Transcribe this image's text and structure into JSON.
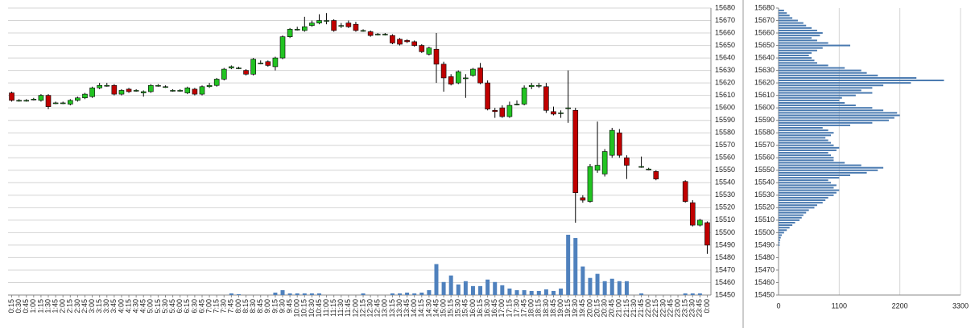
{
  "chart_data": [
    {
      "type": "candlestick",
      "categories": [
        "0:15",
        "0:30",
        "0:45",
        "1:00",
        "1:15",
        "1:30",
        "1:45",
        "2:00",
        "2:15",
        "2:30",
        "2:45",
        "3:00",
        "3:15",
        "3:30",
        "3:45",
        "4:00",
        "4:15",
        "4:30",
        "4:45",
        "5:00",
        "5:15",
        "5:30",
        "5:45",
        "6:00",
        "6:15",
        "6:30",
        "6:45",
        "7:00",
        "7:15",
        "7:30",
        "7:45",
        "8:00",
        "8:15",
        "8:30",
        "8:45",
        "9:00",
        "9:15",
        "9:30",
        "9:45",
        "10:00",
        "10:15",
        "10:30",
        "10:45",
        "11:00",
        "11:15",
        "11:30",
        "11:45",
        "12:00",
        "12:15",
        "12:30",
        "12:45",
        "13:00",
        "13:15",
        "13:30",
        "13:45",
        "14:00",
        "14:15",
        "14:30",
        "14:45",
        "15:00",
        "15:15",
        "15:30",
        "15:45",
        "16:00",
        "16:15",
        "16:30",
        "16:45",
        "17:00",
        "17:15",
        "17:30",
        "17:45",
        "18:00",
        "18:15",
        "18:30",
        "18:45",
        "19:00",
        "19:15",
        "19:30",
        "19:45",
        "20:00",
        "20:15",
        "20:30",
        "20:45",
        "21:00",
        "21:15",
        "21:30",
        "21:45",
        "22:00",
        "22:15",
        "22:30",
        "22:45",
        "23:00",
        "23:15",
        "23:30",
        "23:45",
        "0:00"
      ],
      "open": [
        15612,
        15606,
        15606,
        15607,
        15606,
        15610,
        15604,
        15604,
        15603,
        15606,
        15608,
        15609,
        15616,
        15618,
        15618,
        15611,
        15615,
        15614,
        15612,
        15613,
        15618,
        15617,
        15614,
        15614,
        15612,
        15615,
        15611,
        15617,
        15618,
        15623,
        15632,
        15632,
        15630,
        15627,
        15636,
        15637,
        15633,
        15640,
        15657,
        15663,
        15662,
        15666,
        15668,
        15670,
        15670,
        15666,
        15668,
        15667,
        15662,
        15661,
        15659,
        15659,
        15658,
        15655,
        15654,
        15653,
        15650,
        15643,
        15647,
        15635,
        15625,
        15620,
        15624,
        15626,
        15632,
        15620,
        15598,
        15600,
        15593,
        15603,
        15603,
        15617,
        15618,
        15617,
        15597,
        15596,
        15600,
        15598,
        15528,
        15525,
        15550,
        15547,
        15562,
        15580,
        15560,
        null,
        15553,
        15551,
        15549,
        null,
        null,
        null,
        15541,
        15524,
        15506,
        15508
      ],
      "high": [
        15613,
        15607,
        15607,
        15608,
        15611,
        15611,
        15605,
        15605,
        15607,
        15609,
        15612,
        15617,
        15620,
        15620,
        15619,
        15615,
        15616,
        15615,
        15614,
        15619,
        15619,
        15618,
        15615,
        15615,
        15617,
        15616,
        15618,
        15620,
        15624,
        15632,
        15634,
        15633,
        15631,
        15640,
        15638,
        15638,
        15641,
        15658,
        15664,
        15665,
        15673,
        15670,
        15675,
        15676,
        15671,
        15668,
        15670,
        15669,
        15663,
        15662,
        15660,
        15660,
        15659,
        15656,
        15655,
        15654,
        15651,
        15649,
        15660,
        15637,
        15627,
        15630,
        15627,
        15632,
        15636,
        15622,
        15600,
        15602,
        15605,
        15606,
        15618,
        15620,
        15620,
        15620,
        15601,
        15598,
        15630,
        15600,
        15530,
        15555,
        15589,
        15567,
        15584,
        15583,
        15562,
        null,
        15561,
        15552,
        15550,
        null,
        null,
        null,
        15542,
        15526,
        15511,
        15509
      ],
      "low": [
        15605,
        15605,
        15605,
        15606,
        15605,
        15599,
        15603,
        15603,
        15602,
        15605,
        15607,
        15608,
        15615,
        15617,
        15610,
        15610,
        15612,
        15613,
        15609,
        15612,
        15617,
        15616,
        15613,
        15613,
        15611,
        15610,
        15610,
        15616,
        15617,
        15622,
        15631,
        15631,
        15626,
        15626,
        15635,
        15633,
        15630,
        15639,
        15656,
        15662,
        15661,
        15665,
        15667,
        15667,
        15661,
        15664,
        15664,
        15661,
        15661,
        15657,
        15658,
        15658,
        15651,
        15650,
        15652,
        15649,
        15644,
        15642,
        15620,
        15613,
        15618,
        15619,
        15608,
        15625,
        15619,
        15598,
        15592,
        15592,
        15592,
        15602,
        15602,
        15615,
        15616,
        15596,
        15594,
        15592,
        15588,
        15508,
        15524,
        15524,
        15548,
        15545,
        15560,
        15560,
        15543,
        null,
        15552,
        15550,
        15542,
        null,
        null,
        null,
        15524,
        15505,
        15505,
        15483
      ],
      "close": [
        15606,
        15606,
        15606,
        15607,
        15610,
        15601,
        15604,
        15604,
        15606,
        15608,
        15611,
        15616,
        15618,
        15618,
        15611,
        15614,
        15613,
        15614,
        15613,
        15618,
        15618,
        15617,
        15614,
        15614,
        15616,
        15611,
        15617,
        15618,
        15623,
        15631,
        15633,
        15632,
        15627,
        15639,
        15636,
        15634,
        15640,
        15657,
        15663,
        15663,
        15665,
        15668,
        15670,
        15670,
        15662,
        15666,
        15665,
        15662,
        15662,
        15658,
        15659,
        15659,
        15652,
        15651,
        15653,
        15650,
        15645,
        15648,
        15635,
        15624,
        15619,
        15629,
        15624,
        15631,
        15620,
        15599,
        15597,
        15593,
        15602,
        15603,
        15616,
        15618,
        15618,
        15598,
        15595,
        15596,
        15600,
        15532,
        15526,
        15553,
        15554,
        15565,
        15582,
        15562,
        15554,
        null,
        15553,
        15551,
        15543,
        null,
        null,
        null,
        15525,
        15506,
        15510,
        15490
      ],
      "volume": [
        0,
        0,
        0,
        0,
        0,
        0,
        0,
        0,
        0,
        0,
        0,
        0,
        0,
        0,
        0,
        0,
        0,
        0,
        0,
        0,
        0,
        0,
        0,
        0,
        0,
        0,
        0,
        0,
        0,
        0,
        2,
        1,
        0,
        0,
        0,
        0,
        3,
        6,
        2,
        2,
        2,
        2,
        2,
        0,
        0,
        0,
        0,
        0,
        2,
        0,
        0,
        0,
        2,
        2,
        3,
        2,
        3,
        6,
        38,
        16,
        24,
        13,
        17,
        11,
        11,
        19,
        16,
        12,
        8,
        6,
        6,
        5,
        5,
        7,
        5,
        8,
        74,
        70,
        35,
        21,
        26,
        17,
        20,
        17,
        17,
        0,
        2,
        0,
        0,
        0,
        0,
        0,
        2,
        2,
        2,
        0
      ],
      "up_color": "#22c322",
      "down_color": "#c00000",
      "volume_color": "#4f81bd",
      "ylim": [
        15450,
        15680
      ],
      "yticks": [
        15450,
        15460,
        15470,
        15480,
        15490,
        15500,
        15510,
        15520,
        15530,
        15540,
        15550,
        15560,
        15570,
        15580,
        15590,
        15600,
        15610,
        15620,
        15630,
        15640,
        15650,
        15660,
        15670,
        15680
      ],
      "grid": true
    },
    {
      "type": "profile",
      "levels": [
        15490,
        15492,
        15494,
        15496,
        15498,
        15500,
        15502,
        15504,
        15506,
        15508,
        15510,
        15512,
        15514,
        15516,
        15518,
        15520,
        15522,
        15524,
        15526,
        15528,
        15530,
        15532,
        15534,
        15536,
        15538,
        15540,
        15542,
        15544,
        15546,
        15548,
        15550,
        15552,
        15554,
        15556,
        15558,
        15560,
        15562,
        15564,
        15566,
        15568,
        15570,
        15572,
        15574,
        15576,
        15578,
        15580,
        15582,
        15584,
        15586,
        15588,
        15590,
        15592,
        15594,
        15596,
        15598,
        15600,
        15602,
        15604,
        15606,
        15608,
        15610,
        15612,
        15614,
        15616,
        15618,
        15620,
        15622,
        15624,
        15626,
        15628,
        15630,
        15632,
        15634,
        15636,
        15638,
        15640,
        15642,
        15644,
        15646,
        15648,
        15650,
        15652,
        15654,
        15656,
        15658,
        15660,
        15662,
        15664,
        15666,
        15668,
        15670,
        15672,
        15674,
        15676,
        15678
      ],
      "values": [
        20,
        20,
        30,
        40,
        60,
        100,
        150,
        200,
        250,
        300,
        380,
        420,
        450,
        500,
        550,
        650,
        700,
        800,
        850,
        900,
        1000,
        1050,
        1100,
        1000,
        1050,
        950,
        900,
        1100,
        1300,
        1600,
        1800,
        1900,
        1500,
        1200,
        1000,
        1000,
        950,
        900,
        1050,
        1100,
        1000,
        950,
        900,
        850,
        950,
        1000,
        900,
        800,
        1300,
        1700,
        2000,
        2100,
        2200,
        2150,
        1900,
        1700,
        1400,
        1200,
        1100,
        1150,
        1400,
        1700,
        1500,
        1700,
        1900,
        2400,
        3000,
        2500,
        1800,
        1600,
        1500,
        1200,
        900,
        700,
        650,
        600,
        550,
        600,
        700,
        800,
        1300,
        900,
        700,
        600,
        750,
        800,
        700,
        600,
        500,
        450,
        350,
        250,
        200,
        150,
        100
      ],
      "color": "#4a7ab0",
      "xlim": [
        0,
        3300
      ],
      "xticks": [
        0,
        1100,
        2200,
        3300
      ],
      "ylim": [
        15450,
        15680
      ],
      "yticks": [
        15450,
        15460,
        15470,
        15480,
        15490,
        15500,
        15510,
        15520,
        15530,
        15540,
        15550,
        15560,
        15570,
        15580,
        15590,
        15600,
        15610,
        15620,
        15630,
        15640,
        15650,
        15660,
        15670,
        15680
      ],
      "grid": true
    }
  ]
}
